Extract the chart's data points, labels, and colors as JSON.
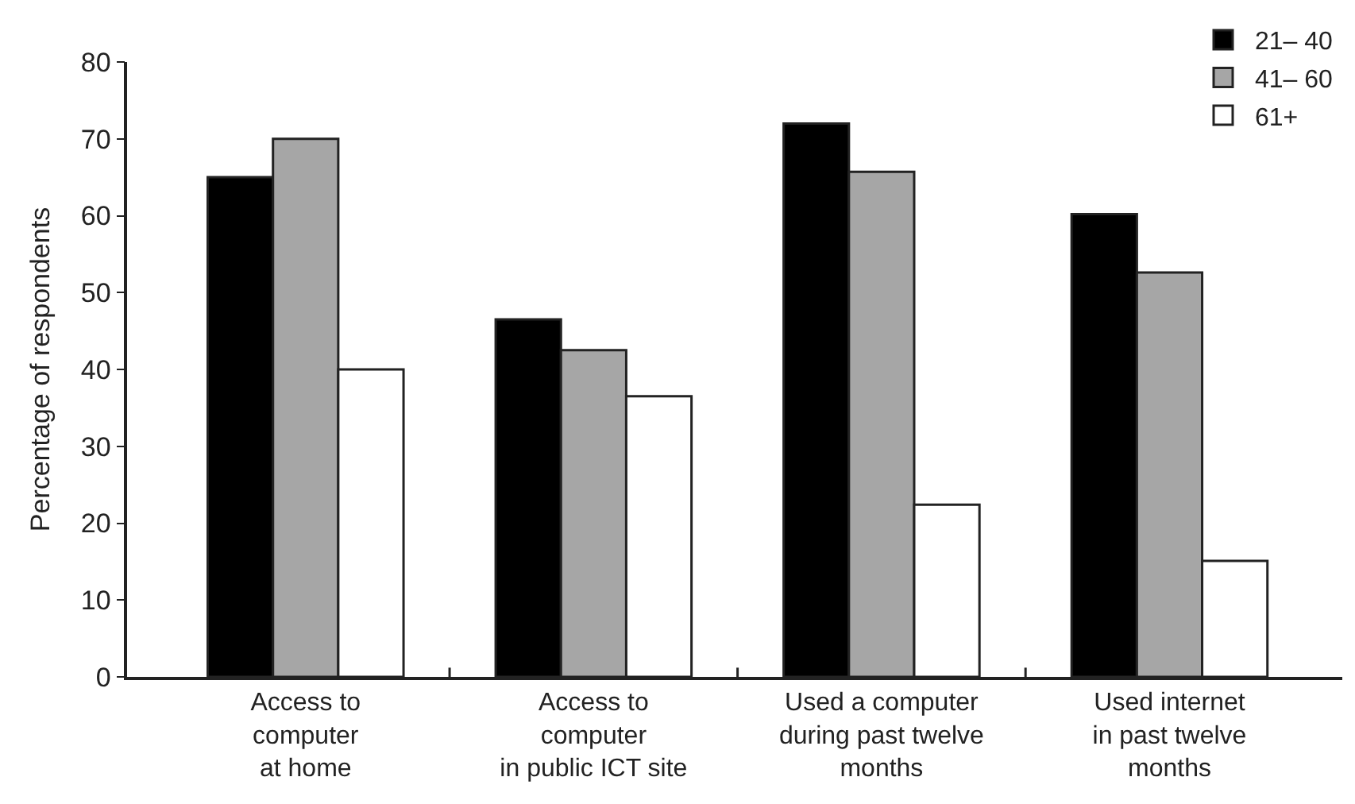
{
  "chart_data": {
    "type": "bar",
    "ylabel": "Percentage of respondents",
    "categories": [
      "Access to\ncomputer\nat home",
      "Access to\ncomputer\nin public ICT site",
      "Used a computer\nduring past twelve\nmonths",
      "Used internet\nin past twelve\nmonths"
    ],
    "series": [
      {
        "name": "21– 40",
        "color": "#000000",
        "values": [
          65,
          46.5,
          72,
          60.2
        ]
      },
      {
        "name": "41– 60",
        "color": "#a6a6a6",
        "values": [
          70,
          42.5,
          65.7,
          52.6
        ]
      },
      {
        "name": "61+",
        "color": "#ffffff",
        "values": [
          40,
          36.5,
          22.4,
          15.1
        ]
      }
    ],
    "ylim": [
      0,
      80
    ],
    "yticks": [
      0,
      10,
      20,
      30,
      40,
      50,
      60,
      70,
      80
    ],
    "legend": "top right"
  }
}
